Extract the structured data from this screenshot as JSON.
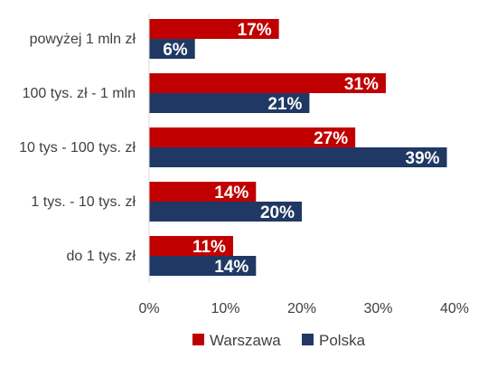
{
  "chart_data": {
    "type": "bar",
    "orientation": "horizontal",
    "categories": [
      "powyżej 1 mln zł",
      "100 tys. zł - 1 mln",
      "10 tys - 100 tys. zł",
      "1 tys. - 10 tys. zł",
      "do 1 tys. zł"
    ],
    "series": [
      {
        "name": "Warszawa",
        "color": "#C00000",
        "values": [
          17,
          31,
          27,
          14,
          11
        ],
        "labels": [
          "17%",
          "31%",
          "27%",
          "14%",
          "11%"
        ]
      },
      {
        "name": "Polska",
        "color": "#1F3864",
        "values": [
          6,
          21,
          39,
          20,
          14
        ],
        "labels": [
          "6%",
          "21%",
          "39%",
          "20%",
          "14%"
        ]
      }
    ],
    "xlim": [
      0,
      40
    ],
    "x_ticks": [
      0,
      10,
      20,
      30,
      40
    ],
    "x_tick_labels": [
      "0%",
      "10%",
      "20%",
      "30%",
      "40%"
    ],
    "grid": false,
    "legend_position": "bottom"
  }
}
